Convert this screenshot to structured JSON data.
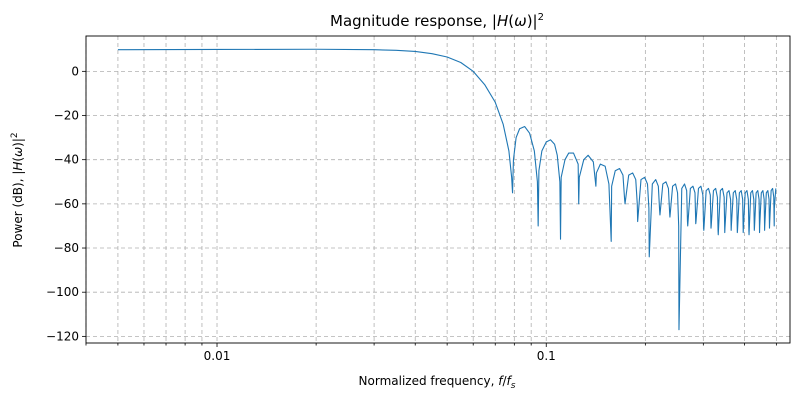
{
  "chart_data": {
    "type": "line",
    "title": {
      "prefix": "Magnitude response, |",
      "var": "H",
      "mid": "(",
      "omega": "ω",
      "suffix": ")|",
      "sup": "2"
    },
    "xlabel": {
      "prefix": "Normalized frequency, ",
      "f": "f",
      "slash": "/",
      "fs": "f",
      "fs_sub": "s"
    },
    "ylabel": {
      "prefix": "Power (dB), |",
      "var": "H",
      "mid": "(",
      "omega": "ω",
      "suffix": ")|",
      "sup": "2"
    },
    "x_scale": "log",
    "xlim": [
      0.004,
      0.55
    ],
    "ylim": [
      -123,
      16
    ],
    "x_ticks": [
      {
        "value": 0.01,
        "label": "0.01"
      },
      {
        "value": 0.1,
        "label": "0.1"
      }
    ],
    "y_ticks": [
      {
        "value": 0,
        "label": "0"
      },
      {
        "value": -20,
        "label": "−20"
      },
      {
        "value": -40,
        "label": "−40"
      },
      {
        "value": -60,
        "label": "−60"
      },
      {
        "value": -80,
        "label": "−80"
      },
      {
        "value": -100,
        "label": "−100"
      },
      {
        "value": -120,
        "label": "−120"
      }
    ],
    "grid": true,
    "line_color": "#1f77b4",
    "grid_color": "#b0b0b0",
    "series": [
      {
        "x": [
          0.005,
          0.01,
          0.02,
          0.03,
          0.035,
          0.04,
          0.045,
          0.05,
          0.055,
          0.06,
          0.065,
          0.07,
          0.074,
          0.077,
          0.0785,
          0.079,
          0.0795,
          0.081,
          0.083,
          0.086,
          0.089,
          0.092,
          0.094,
          0.0945,
          0.095,
          0.097,
          0.1,
          0.103,
          0.106,
          0.108,
          0.11,
          0.1105,
          0.111,
          0.114,
          0.117,
          0.121,
          0.125,
          0.1255,
          0.126,
          0.13,
          0.134,
          0.139,
          0.1415,
          0.142,
          0.146,
          0.151,
          0.155,
          0.1575,
          0.158,
          0.162,
          0.167,
          0.171,
          0.173,
          0.1735,
          0.178,
          0.183,
          0.187,
          0.189,
          0.1895,
          0.194,
          0.199,
          0.203,
          0.205,
          0.2055,
          0.21,
          0.215,
          0.219,
          0.221,
          0.2215,
          0.226,
          0.231,
          0.235,
          0.237,
          0.2375,
          0.242,
          0.247,
          0.2505,
          0.2525,
          0.253,
          0.258,
          0.263,
          0.267,
          0.2685,
          0.269,
          0.274,
          0.279,
          0.283,
          0.2845,
          0.285,
          0.29,
          0.295,
          0.299,
          0.3005,
          0.301,
          0.306,
          0.311,
          0.315,
          0.3165,
          0.317,
          0.322,
          0.327,
          0.331,
          0.3325,
          0.333,
          0.338,
          0.343,
          0.347,
          0.3485,
          0.349,
          0.354,
          0.359,
          0.363,
          0.3645,
          0.365,
          0.37,
          0.375,
          0.379,
          0.3805,
          0.381,
          0.386,
          0.391,
          0.395,
          0.3965,
          0.397,
          0.402,
          0.407,
          0.411,
          0.4125,
          0.413,
          0.418,
          0.423,
          0.427,
          0.4285,
          0.429,
          0.434,
          0.439,
          0.443,
          0.4445,
          0.445,
          0.45,
          0.455,
          0.459,
          0.4605,
          0.461,
          0.466,
          0.471,
          0.475,
          0.4765,
          0.477,
          0.482,
          0.487,
          0.491,
          0.4925,
          0.493,
          0.498
        ],
        "y": [
          9.8,
          9.9,
          10.0,
          9.8,
          9.5,
          9.0,
          8.0,
          6.5,
          4.0,
          0,
          -6,
          -14,
          -24,
          -36,
          -48,
          -55,
          -40,
          -30,
          -26,
          -25,
          -28,
          -36,
          -50,
          -70,
          -45,
          -36,
          -32,
          -31,
          -33,
          -38,
          -50,
          -76,
          -48,
          -40,
          -37,
          -37,
          -42,
          -60,
          -48,
          -40,
          -38,
          -41,
          -52,
          -46,
          -42,
          -43,
          -51,
          -77,
          -52,
          -45,
          -44,
          -47,
          -58,
          -60,
          -47,
          -46,
          -49,
          -60,
          -68,
          -49,
          -48,
          -51,
          -62,
          -84,
          -51,
          -49,
          -52,
          -63,
          -65,
          -51,
          -50,
          -53,
          -64,
          -66,
          -52,
          -51,
          -55,
          -70,
          -117,
          -53,
          -51,
          -54,
          -68,
          -70,
          -53,
          -52,
          -55,
          -69,
          -68,
          -53,
          -52,
          -56,
          -70,
          -72,
          -54,
          -53,
          -56,
          -71,
          -70,
          -54,
          -53,
          -57,
          -72,
          -74,
          -54,
          -53,
          -57,
          -73,
          -71,
          -55,
          -54,
          -58,
          -72,
          -70,
          -55,
          -54,
          -58,
          -73,
          -72,
          -55,
          -54,
          -58,
          -73,
          -71,
          -55,
          -54,
          -58,
          -72,
          -74,
          -55,
          -54,
          -58,
          -72,
          -71,
          -55,
          -54,
          -58,
          -73,
          -70,
          -55,
          -54,
          -58,
          -72,
          -70,
          -55,
          -54,
          -58,
          -71,
          -69,
          -54,
          -53,
          -57,
          -70,
          -62,
          -53
        ]
      }
    ]
  }
}
